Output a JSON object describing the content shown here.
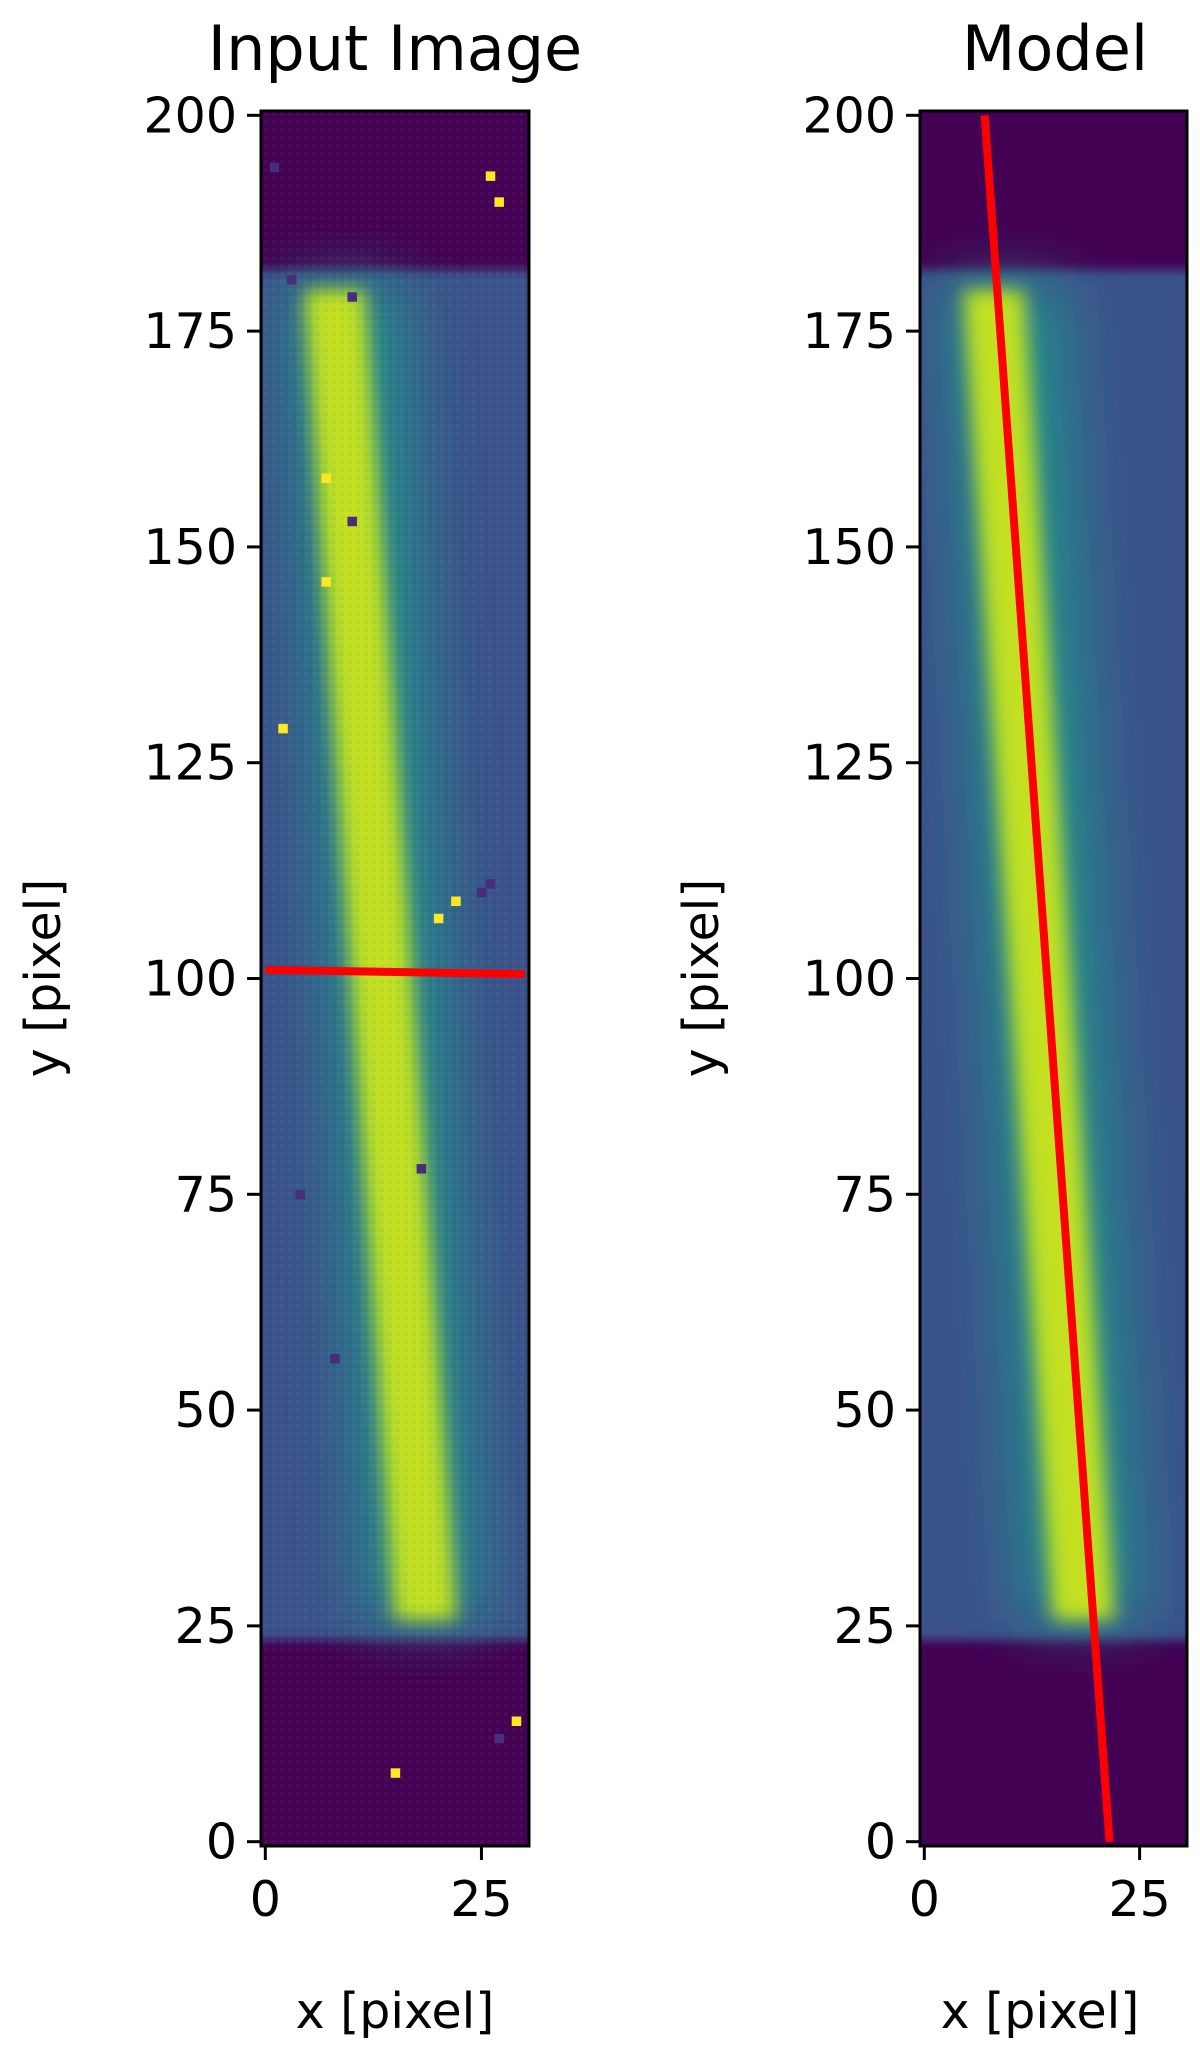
{
  "chart_data": [
    {
      "type": "heatmap",
      "title": "Input Image",
      "xlabel": "x [pixel]",
      "ylabel": "y [pixel]",
      "xlim": [
        -0.5,
        30.5
      ],
      "ylim": [
        -0.5,
        200.5
      ],
      "x_ticks": [
        0,
        25
      ],
      "y_ticks": [
        0,
        25,
        50,
        75,
        100,
        125,
        150,
        175,
        200
      ],
      "grid": false,
      "colormap": "viridis",
      "trace": {
        "x_top": 7.5,
        "y_top": 180,
        "x_bottom": 21.5,
        "y_bottom": 23,
        "width": 7
      },
      "overlay_line": {
        "color": "#ff0000",
        "points": [
          [
            0,
            101
          ],
          [
            30,
            100.5
          ]
        ]
      },
      "hot_pixels": [
        [
          26,
          193
        ],
        [
          27,
          190
        ],
        [
          7,
          158
        ],
        [
          20,
          107
        ],
        [
          22,
          109
        ],
        [
          15,
          8
        ],
        [
          29,
          14
        ],
        [
          2,
          129
        ],
        [
          7,
          146
        ]
      ],
      "cold_pixels": [
        [
          10,
          179
        ],
        [
          10,
          153
        ],
        [
          18,
          78
        ],
        [
          4,
          75
        ],
        [
          8,
          56
        ],
        [
          25,
          110
        ],
        [
          26,
          111
        ],
        [
          27,
          12
        ],
        [
          1,
          194
        ],
        [
          3,
          181
        ]
      ]
    },
    {
      "type": "heatmap",
      "title": "Model",
      "xlabel": "x [pixel]",
      "ylabel": "y [pixel]",
      "xlim": [
        -0.5,
        30.5
      ],
      "ylim": [
        -0.5,
        200.5
      ],
      "x_ticks": [
        0,
        25
      ],
      "y_ticks": [
        0,
        25,
        50,
        75,
        100,
        125,
        150,
        175,
        200
      ],
      "grid": false,
      "colormap": "viridis",
      "trace": {
        "x_top": 7.5,
        "y_top": 180,
        "x_bottom": 21.5,
        "y_bottom": 23,
        "width": 7
      },
      "overlay_line": {
        "color": "#ff0000",
        "points": [
          [
            7,
            200
          ],
          [
            21.5,
            0
          ]
        ]
      },
      "hot_pixels": [],
      "cold_pixels": []
    }
  ]
}
